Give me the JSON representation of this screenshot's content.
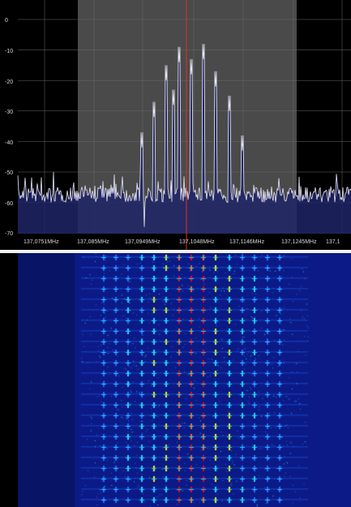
{
  "spectrum": {
    "db_axis": {
      "ticks": [
        "0",
        "-10",
        "-20",
        "-30",
        "-40",
        "-50",
        "-60",
        "-70"
      ],
      "values": [
        0,
        -10,
        -20,
        -30,
        -40,
        -50,
        -60,
        -70
      ]
    },
    "freq_axis": {
      "labels": [
        "137,0751MHz",
        "137,085MHz",
        "137,0949MHz",
        "137,1048MHz",
        "137,1146MHz",
        "137,1245MHz",
        "137,1"
      ]
    },
    "tuned_marker": {
      "label": "137,1048MHz",
      "color": "#e0301e"
    },
    "filter_band": {
      "color": "#4a4a4a"
    },
    "trace_color": "#e8e8f8",
    "fill_color": "#1e2466"
  },
  "waterfall": {
    "colormap": [
      "#0b1a86",
      "#1530c8",
      "#2a6cff",
      "#21d6ff",
      "#f7f000",
      "#ff6a00",
      "#ff0000"
    ]
  }
}
